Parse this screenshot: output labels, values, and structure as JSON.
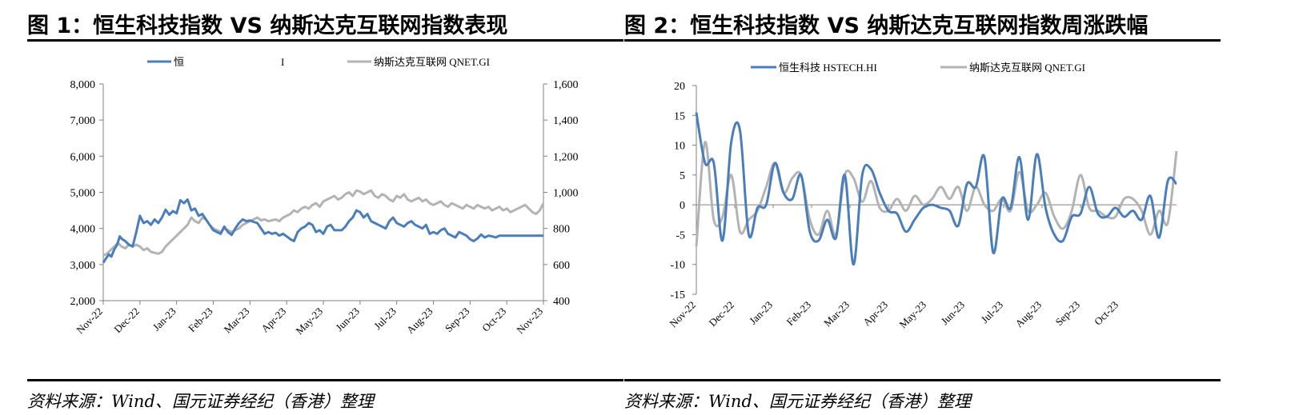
{
  "figures": [
    {
      "title": "图 1：恒生科技指数 VS 纳斯达克互联网指数表现",
      "source": "资料来源：Wind、国元证券经纪（香港）整理"
    },
    {
      "title": "图 2：恒生科技指数 VS 纳斯达克互联网指数周涨跌幅",
      "source": "资料来源：Wind、国元证券经纪（香港）整理"
    }
  ],
  "colors": {
    "blue": "#4a7ebb",
    "gray": "#b3b3b3",
    "axis": "#808080"
  },
  "chart_data": [
    {
      "type": "line",
      "title": "",
      "x_ticks": [
        "Nov-22",
        "Dec-22",
        "Jan-23",
        "Feb-23",
        "Mar-23",
        "Apr-23",
        "May-23",
        "Jun-23",
        "Jul-23",
        "Aug-23",
        "Sep-23",
        "Oct-23",
        "Nov-23"
      ],
      "legend": [
        "恒",
        "I",
        "纳斯达克互联网 QNET.GI"
      ],
      "legend_position": "top",
      "y_left": {
        "ticks": [
          "2,000",
          "3,000",
          "4,000",
          "5,000",
          "6,000",
          "7,000",
          "8,000"
        ],
        "range": [
          2000,
          8000
        ]
      },
      "y_right": {
        "ticks": [
          "400",
          "600",
          "800",
          "1,000",
          "1,200",
          "1,400",
          "1,600"
        ],
        "range": [
          400,
          1600
        ]
      },
      "grid": false,
      "series": [
        {
          "axis": "left",
          "x": [
            0,
            0.08,
            0.15,
            0.22,
            0.3,
            0.38,
            0.45,
            0.52,
            0.6,
            0.7,
            0.8,
            0.9,
            1.0,
            1.1,
            1.2,
            1.3,
            1.4,
            1.5,
            1.6,
            1.7,
            1.8,
            1.9,
            2.0,
            2.1,
            2.2,
            2.3,
            2.4,
            2.5,
            2.6,
            2.7,
            2.8,
            2.9,
            3.0,
            3.1,
            3.2,
            3.3,
            3.4,
            3.5,
            3.6,
            3.7,
            3.8,
            3.9,
            4.0,
            4.1,
            4.2,
            4.3,
            4.4,
            4.5,
            4.6,
            4.7,
            4.8,
            4.9,
            5.0,
            5.1,
            5.2,
            5.3,
            5.4,
            5.5,
            5.6,
            5.7,
            5.8,
            5.9,
            6.0,
            6.1,
            6.2,
            6.3,
            6.4,
            6.5,
            6.6,
            6.7,
            6.8,
            6.9,
            7.0,
            7.1,
            7.2,
            7.3,
            7.4,
            7.5,
            7.6,
            7.7,
            7.8,
            7.9,
            8.0,
            8.1,
            8.2,
            8.3,
            8.4,
            8.5,
            8.6,
            8.7,
            8.8,
            8.9,
            9.0,
            9.1,
            9.2,
            9.3,
            9.4,
            9.5,
            9.6,
            9.7,
            9.8,
            9.9,
            10.0,
            10.1,
            10.2,
            10.3,
            10.4,
            10.5,
            10.6,
            10.7,
            10.8,
            10.9,
            11.0,
            11.1,
            11.2,
            11.3,
            11.4,
            11.5,
            11.6,
            11.7,
            11.8,
            11.9,
            12.0
          ],
          "values": [
            3050,
            3180,
            3280,
            3220,
            3420,
            3550,
            3780,
            3700,
            3650,
            3550,
            3500,
            3900,
            4350,
            4150,
            4200,
            4100,
            4250,
            4150,
            4300,
            4520,
            4380,
            4480,
            4420,
            4780,
            4700,
            4800,
            4500,
            4550,
            4350,
            4400,
            4250,
            4100,
            3950,
            3900,
            3850,
            4050,
            3900,
            3820,
            4000,
            4150,
            4250,
            4200,
            4220,
            4180,
            4150,
            4000,
            3850,
            3900,
            3850,
            3880,
            3800,
            3850,
            3780,
            3700,
            3650,
            3900,
            4000,
            4050,
            4150,
            4100,
            3900,
            3950,
            3850,
            4050,
            4100,
            3950,
            3950,
            3950,
            4050,
            4200,
            4300,
            4500,
            4450,
            4300,
            4400,
            4200,
            4150,
            4100,
            4050,
            4000,
            4200,
            4300,
            4150,
            4100,
            4050,
            4150,
            4200,
            4100,
            4050,
            4000,
            4100,
            3850,
            3900,
            3850,
            3950,
            4000,
            3850,
            3800,
            3750,
            3900,
            3850,
            3800,
            3700,
            3650,
            3720,
            3830,
            3750,
            3800,
            3780,
            3750,
            3800,
            3800,
            3800,
            3800,
            3800,
            3800,
            3800,
            3800,
            3800,
            3800,
            3800,
            3800,
            3800
          ]
        },
        {
          "axis": "right",
          "x": [
            0,
            0.1,
            0.2,
            0.3,
            0.4,
            0.5,
            0.6,
            0.7,
            0.8,
            0.9,
            1.0,
            1.1,
            1.2,
            1.3,
            1.4,
            1.5,
            1.6,
            1.7,
            1.8,
            1.9,
            2.0,
            2.1,
            2.2,
            2.3,
            2.4,
            2.5,
            2.6,
            2.7,
            2.8,
            2.9,
            3.0,
            3.1,
            3.2,
            3.3,
            3.4,
            3.5,
            3.6,
            3.7,
            3.8,
            3.9,
            4.0,
            4.1,
            4.2,
            4.3,
            4.4,
            4.5,
            4.6,
            4.7,
            4.8,
            4.9,
            5.0,
            5.1,
            5.2,
            5.3,
            5.4,
            5.5,
            5.6,
            5.7,
            5.8,
            5.9,
            6.0,
            6.1,
            6.2,
            6.3,
            6.4,
            6.5,
            6.6,
            6.7,
            6.8,
            6.9,
            7.0,
            7.1,
            7.2,
            7.3,
            7.4,
            7.5,
            7.6,
            7.7,
            7.8,
            7.9,
            8.0,
            8.1,
            8.2,
            8.3,
            8.4,
            8.5,
            8.6,
            8.7,
            8.8,
            8.9,
            9.0,
            9.1,
            9.2,
            9.3,
            9.4,
            9.5,
            9.6,
            9.7,
            9.8,
            9.9,
            10.0,
            10.1,
            10.2,
            10.3,
            10.4,
            10.5,
            10.6,
            10.7,
            10.8,
            10.9,
            11.0,
            11.1,
            11.2,
            11.3,
            11.4,
            11.5,
            11.6,
            11.7,
            11.8,
            11.9,
            12.0
          ],
          "values": [
            650,
            660,
            680,
            700,
            720,
            700,
            690,
            710,
            700,
            710,
            700,
            680,
            690,
            670,
            665,
            660,
            670,
            700,
            720,
            740,
            760,
            780,
            800,
            820,
            860,
            840,
            830,
            860,
            850,
            820,
            800,
            790,
            780,
            800,
            790,
            780,
            790,
            800,
            820,
            830,
            840,
            850,
            860,
            845,
            850,
            840,
            845,
            850,
            840,
            860,
            870,
            880,
            900,
            890,
            910,
            920,
            910,
            930,
            940,
            920,
            950,
            960,
            970,
            980,
            960,
            970,
            990,
            1000,
            980,
            1010,
            1005,
            990,
            1000,
            1010,
            980,
            970,
            990,
            980,
            960,
            950,
            980,
            970,
            990,
            960,
            950,
            960,
            970,
            950,
            960,
            940,
            930,
            940,
            950,
            930,
            920,
            940,
            930,
            920,
            910,
            930,
            920,
            910,
            930,
            920,
            910,
            920,
            900,
            910,
            920,
            900,
            910,
            890,
            900,
            910,
            920,
            930,
            910,
            890,
            880,
            900,
            940
          ]
        }
      ]
    },
    {
      "type": "line",
      "title": "",
      "x_ticks": [
        "Nov-22",
        "Dec-22",
        "Jan-23",
        "Feb-23",
        "Mar-23",
        "Apr-23",
        "May-23",
        "Jun-23",
        "Jul-23",
        "Aug-23",
        "Sep-23",
        "Oct-23"
      ],
      "legend": [
        "恒生科技 HSTECH.HI",
        "纳斯达克互联网 QNET.GI"
      ],
      "legend_position": "top",
      "y_axis": {
        "ticks": [
          "-15",
          "-10",
          "-5",
          "0",
          "5",
          "10",
          "15",
          "20"
        ],
        "range": [
          -15,
          20
        ]
      },
      "grid": false,
      "series": [
        {
          "name": "恒生科技 HSTECH.HI",
          "values": [
            15.5,
            7.0,
            7.0,
            -6.0,
            10.5,
            12.5,
            -5.0,
            -0.5,
            0.0,
            7.0,
            2.0,
            1.0,
            5.0,
            -4.5,
            -6.0,
            -2.5,
            -5.5,
            5.0,
            -10.0,
            5.0,
            6.0,
            2.0,
            -1.0,
            -1.5,
            -4.5,
            -2.5,
            -0.5,
            0.0,
            -0.5,
            -1.0,
            -3.5,
            3.5,
            3.0,
            8.0,
            -8.0,
            1.0,
            -0.5,
            8.0,
            -2.5,
            8.5,
            -0.5,
            -5.0,
            -6.0,
            -2.0,
            -1.5,
            3.0,
            -1.5,
            -2.0,
            -0.5,
            -2.0,
            -1.0,
            -2.5,
            1.5,
            -5.5,
            4.0,
            3.5
          ]
        },
        {
          "name": "纳斯达克互联网 QNET.GI",
          "values": [
            -7.0,
            10.5,
            -2.5,
            -2.0,
            5.0,
            -4.5,
            -2.5,
            -1.0,
            3.0,
            7.0,
            2.0,
            4.5,
            5.0,
            -2.5,
            -5.0,
            -1.0,
            -5.0,
            5.0,
            4.5,
            0.5,
            4.0,
            -0.5,
            -1.0,
            1.0,
            -1.0,
            1.5,
            0.0,
            1.0,
            3.0,
            1.0,
            3.0,
            -1.0,
            3.0,
            0.0,
            -1.0,
            1.0,
            -1.0,
            5.5,
            -1.0,
            0.0,
            2.0,
            -2.0,
            -4.0,
            -1.0,
            5.0,
            -0.5,
            -1.0,
            -2.0,
            -2.0,
            1.0,
            1.0,
            -1.0,
            -5.0,
            -1.0,
            -3.0,
            9.0
          ]
        }
      ]
    }
  ]
}
